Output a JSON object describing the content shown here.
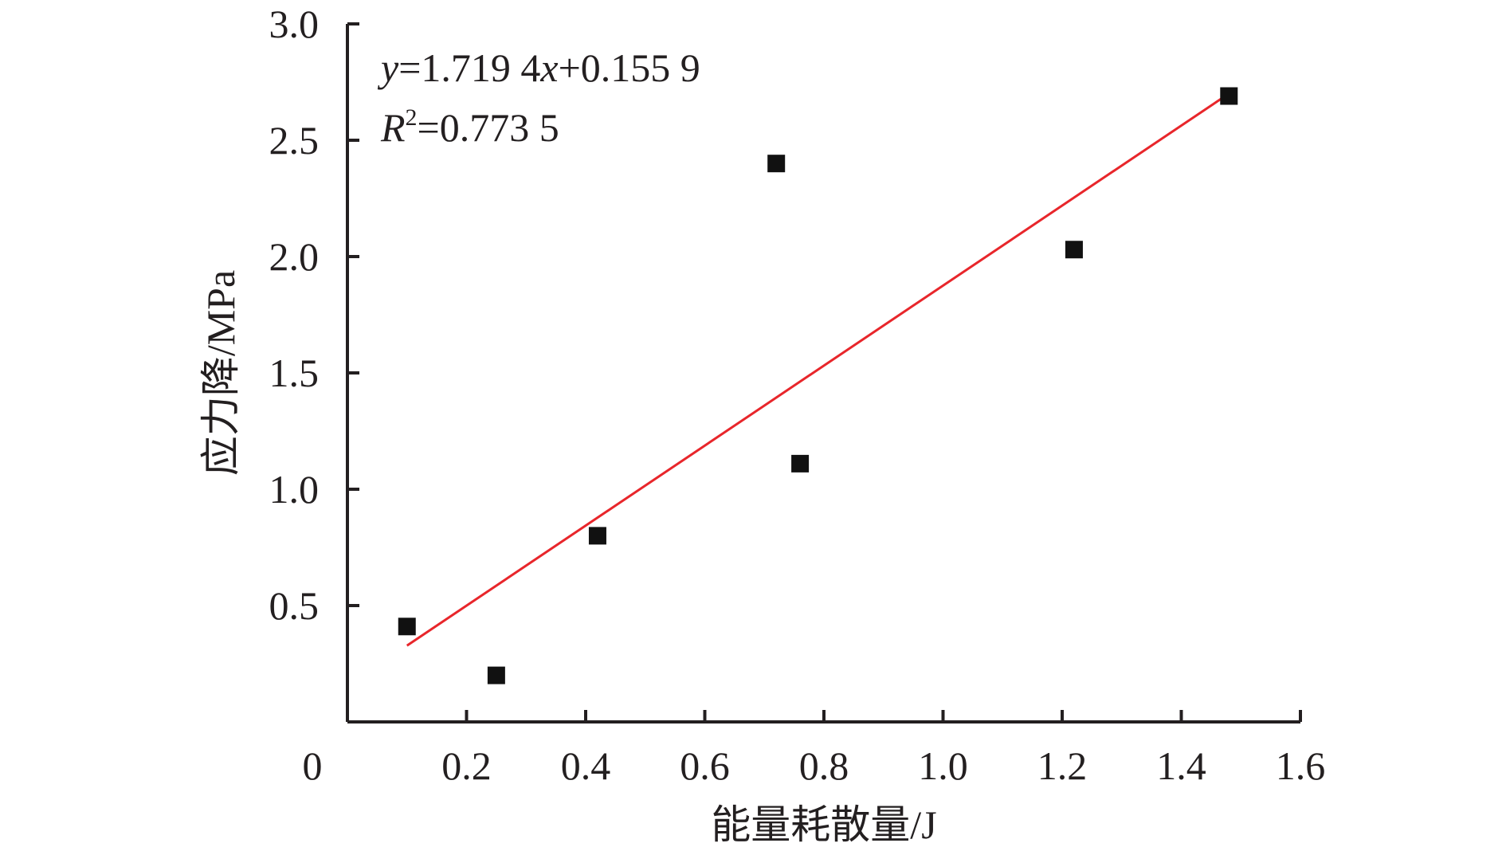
{
  "chart_data": {
    "type": "scatter",
    "title": "",
    "xlabel": "能量耗散量/J",
    "ylabel": "应力降/MPa",
    "xlim": [
      0,
      1.6
    ],
    "ylim": [
      0,
      3.0
    ],
    "x_ticks": [
      0.2,
      0.4,
      0.6,
      0.8,
      1.0,
      1.2,
      1.4,
      1.6
    ],
    "x_tick_labels": [
      "0.2",
      "0.4",
      "0.6",
      "0.8",
      "1.0",
      "1.2",
      "1.4",
      "1.6"
    ],
    "y_ticks": [
      0.5,
      1.0,
      1.5,
      2.0,
      2.5,
      3.0
    ],
    "y_tick_labels": [
      "0.5",
      "1.0",
      "1.5",
      "2.0",
      "2.5",
      "3.0"
    ],
    "origin_label": "0",
    "grid": false,
    "series": [
      {
        "marker": "square",
        "color": "#111111",
        "points": [
          {
            "x": 0.1,
            "y": 0.41
          },
          {
            "x": 0.25,
            "y": 0.2
          },
          {
            "x": 0.42,
            "y": 0.8
          },
          {
            "x": 0.72,
            "y": 2.4
          },
          {
            "x": 0.76,
            "y": 1.11
          },
          {
            "x": 1.22,
            "y": 2.03
          },
          {
            "x": 1.48,
            "y": 2.69
          }
        ]
      }
    ],
    "fit_line": {
      "color": "#e8262b",
      "slope": 1.7194,
      "intercept": 0.1559,
      "x_range": [
        0.1,
        1.48
      ]
    },
    "annotation": {
      "equation": {
        "y_var": "y",
        "eq_a": "=1.719 4",
        "x_var": "x",
        "eq_b": "+0.155 9"
      },
      "r_squared": {
        "var": "R",
        "sup": "2",
        "value": "=0.773 5"
      }
    }
  }
}
